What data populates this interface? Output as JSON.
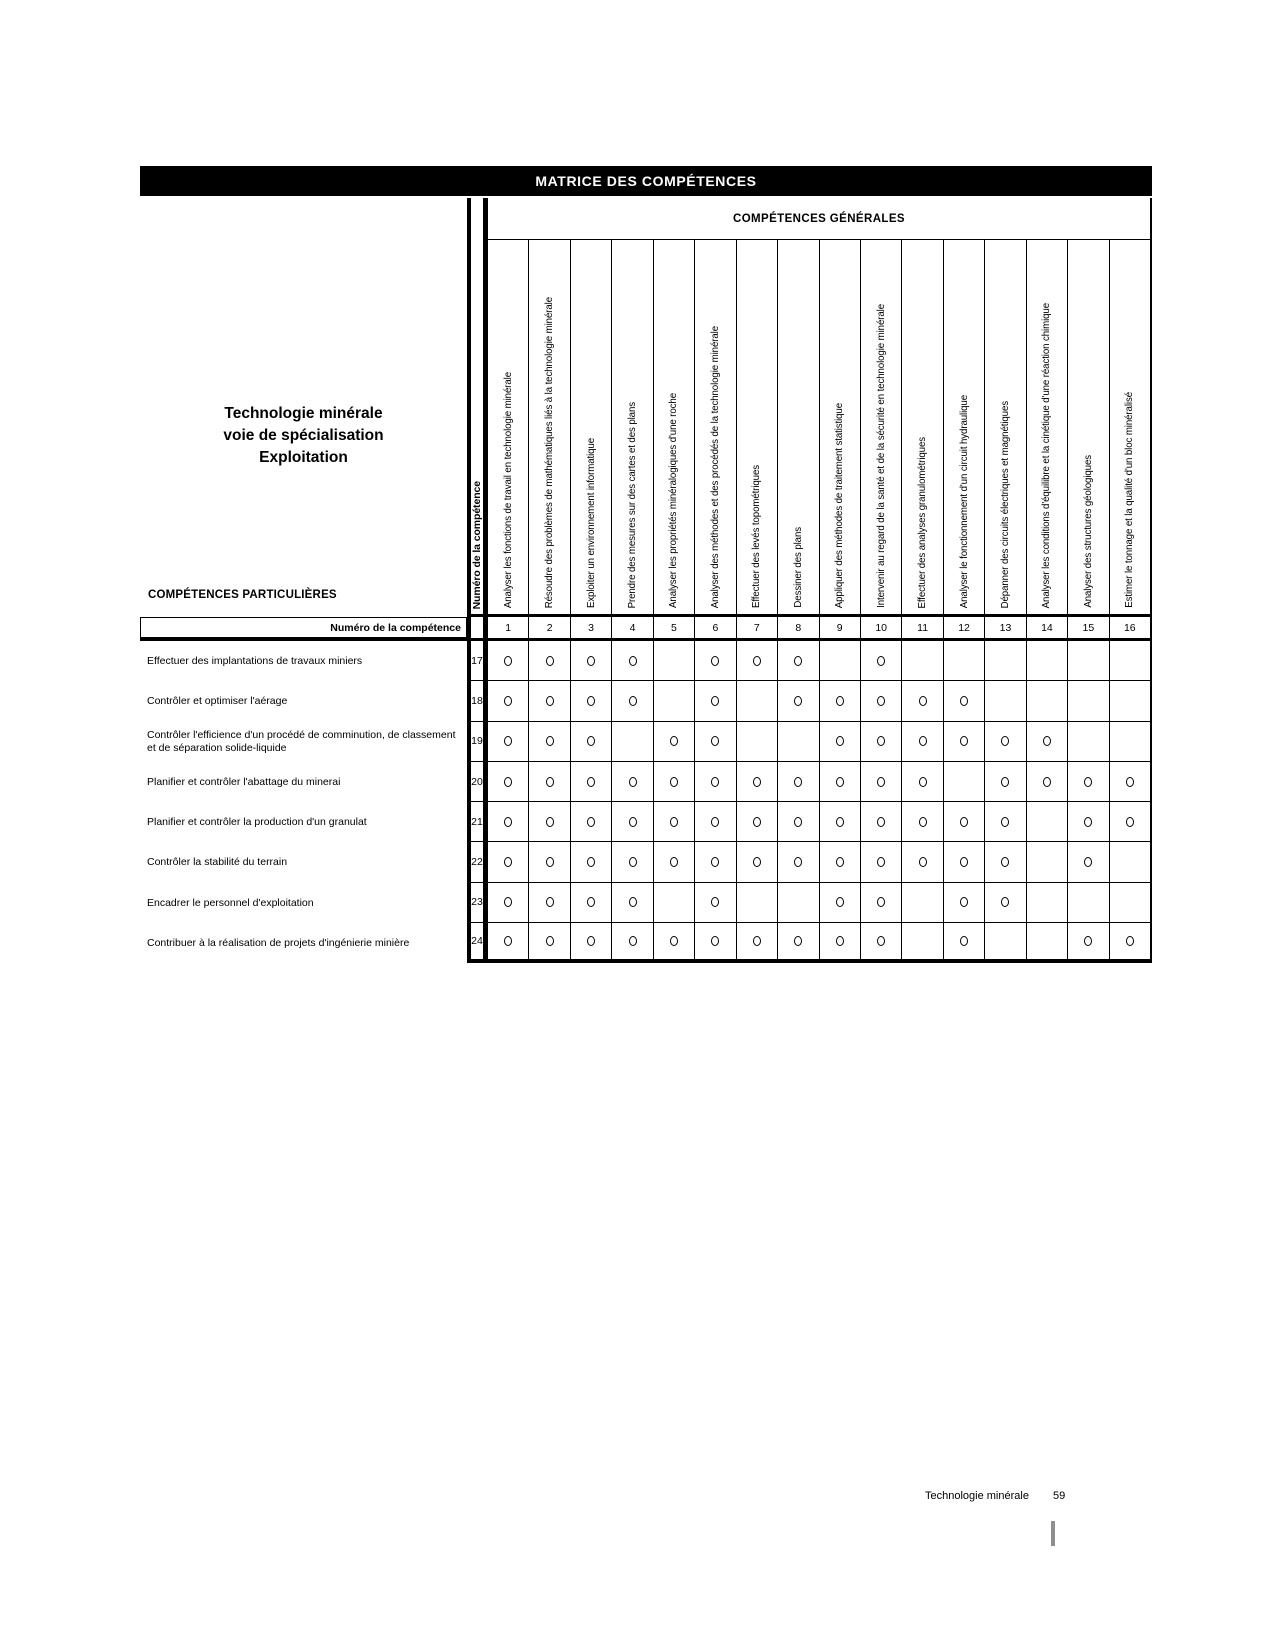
{
  "matrix_title": "MATRICE DES COMPÉTENCES",
  "general_header": "COMPÉTENCES GÉNÉRALES",
  "particular_header": "COMPÉTENCES PARTICULIÈRES",
  "numero_column_label": "Numéro de la compétence",
  "numero_row_label": "Numéro de la compétence",
  "program_title": [
    "Technologie minérale",
    "voie de spécialisation",
    "Exploitation"
  ],
  "general_competencies": [
    {
      "num": "1",
      "label": "Analyser les fonctions de travail en technologie minérale"
    },
    {
      "num": "2",
      "label": "Résoudre des problèmes de mathématiques liés à la technologie minérale"
    },
    {
      "num": "3",
      "label": "Exploiter un environnement informatique"
    },
    {
      "num": "4",
      "label": "Prendre des mesures sur des cartes et des plans"
    },
    {
      "num": "5",
      "label": "Analyser les propriétés minéralogiques d'une roche"
    },
    {
      "num": "6",
      "label": "Analyser des méthodes et des procédés de la technologie minérale"
    },
    {
      "num": "7",
      "label": "Effectuer des levés topométriques"
    },
    {
      "num": "8",
      "label": "Dessiner des plans"
    },
    {
      "num": "9",
      "label": "Appliquer des méthodes de traitement statistique"
    },
    {
      "num": "10",
      "label": "Intervenir au regard de la santé et de la sécurité en technologie minérale"
    },
    {
      "num": "11",
      "label": "Effectuer des analyses granulométriques"
    },
    {
      "num": "12",
      "label": "Analyser le fonctionnement d'un circuit hydraulique"
    },
    {
      "num": "13",
      "label": "Dépanner des circuits électriques et magnétiques"
    },
    {
      "num": "14",
      "label": "Analyser les conditions d'équilibre et la cinétique d'une réaction chimique"
    },
    {
      "num": "15",
      "label": "Analyser des structures géologiques"
    },
    {
      "num": "16",
      "label": "Estimer le tonnage et la qualité d'un bloc minéralisé"
    }
  ],
  "particular_competencies": [
    {
      "num": "17",
      "label": "Effectuer des implantations de travaux miniers",
      "marks": [
        1,
        1,
        1,
        1,
        0,
        1,
        1,
        1,
        0,
        1,
        0,
        0,
        0,
        0,
        0,
        0
      ]
    },
    {
      "num": "18",
      "label": "Contrôler et optimiser l'aérage",
      "marks": [
        1,
        1,
        1,
        1,
        0,
        1,
        0,
        1,
        1,
        1,
        1,
        1,
        0,
        0,
        0,
        0
      ]
    },
    {
      "num": "19",
      "label": "Contrôler l'efficience d'un procédé de comminution, de classement et de séparation solide-liquide",
      "marks": [
        1,
        1,
        1,
        0,
        1,
        1,
        0,
        0,
        1,
        1,
        1,
        1,
        1,
        1,
        0,
        0
      ]
    },
    {
      "num": "20",
      "label": "Planifier et contrôler l'abattage du minerai",
      "marks": [
        1,
        1,
        1,
        1,
        1,
        1,
        1,
        1,
        1,
        1,
        1,
        0,
        1,
        1,
        1,
        1
      ]
    },
    {
      "num": "21",
      "label": "Planifier et contrôler la production d'un granulat",
      "marks": [
        1,
        1,
        1,
        1,
        1,
        1,
        1,
        1,
        1,
        1,
        1,
        1,
        1,
        0,
        1,
        1
      ]
    },
    {
      "num": "22",
      "label": "Contrôler la stabilité du terrain",
      "marks": [
        1,
        1,
        1,
        1,
        1,
        1,
        1,
        1,
        1,
        1,
        1,
        1,
        1,
        0,
        1,
        0
      ]
    },
    {
      "num": "23",
      "label": "Encadrer le personnel d'exploitation",
      "marks": [
        1,
        1,
        1,
        1,
        0,
        1,
        0,
        0,
        1,
        1,
        0,
        1,
        1,
        0,
        0,
        0
      ]
    },
    {
      "num": "24",
      "label": "Contribuer à la réalisation de projets d'ingénierie minière",
      "marks": [
        1,
        1,
        1,
        1,
        1,
        1,
        1,
        1,
        1,
        1,
        0,
        1,
        0,
        0,
        1,
        1
      ]
    }
  ],
  "mark_symbol": "O",
  "footer": {
    "text": "Technologie minérale",
    "page": "59"
  },
  "colors": {
    "bar_background": "#000000",
    "bar_text": "#ffffff",
    "line": "#000000",
    "tick_gray": "#8f8f8f"
  }
}
